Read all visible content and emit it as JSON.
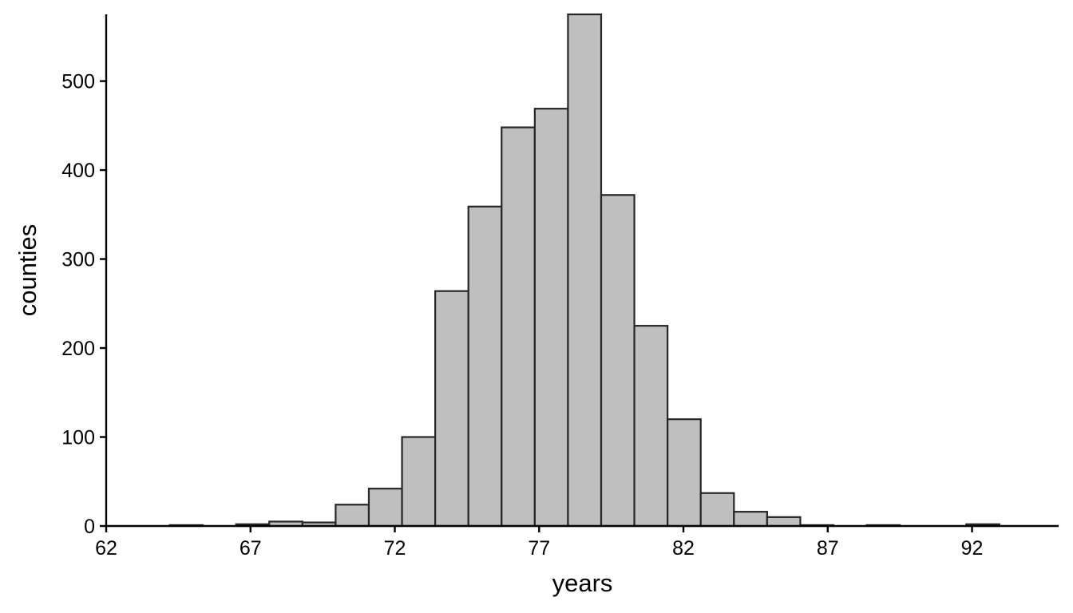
{
  "chart_data": {
    "type": "bar",
    "title": "",
    "xlabel": "years",
    "ylabel": "counties",
    "xlim": [
      62,
      95
    ],
    "ylim": [
      0,
      575
    ],
    "xticks": [
      62,
      67,
      72,
      77,
      82,
      87,
      92
    ],
    "yticks": [
      0,
      100,
      200,
      300,
      400,
      500
    ],
    "bin_width": 1.15,
    "bins": [
      {
        "x0": 64.2,
        "value": 1
      },
      {
        "x0": 66.5,
        "value": 2
      },
      {
        "x0": 67.65,
        "value": 5
      },
      {
        "x0": 68.8,
        "value": 4
      },
      {
        "x0": 69.95,
        "value": 24
      },
      {
        "x0": 71.1,
        "value": 42
      },
      {
        "x0": 72.25,
        "value": 100
      },
      {
        "x0": 73.4,
        "value": 264
      },
      {
        "x0": 74.55,
        "value": 359
      },
      {
        "x0": 75.7,
        "value": 448
      },
      {
        "x0": 76.85,
        "value": 469
      },
      {
        "x0": 78.0,
        "value": 575
      },
      {
        "x0": 79.15,
        "value": 372
      },
      {
        "x0": 80.3,
        "value": 225
      },
      {
        "x0": 81.45,
        "value": 120
      },
      {
        "x0": 82.6,
        "value": 37
      },
      {
        "x0": 83.75,
        "value": 16
      },
      {
        "x0": 84.9,
        "value": 10
      },
      {
        "x0": 86.05,
        "value": 1
      },
      {
        "x0": 88.35,
        "value": 1
      },
      {
        "x0": 91.8,
        "value": 2
      }
    ],
    "grid": false,
    "colors": {
      "bar_fill": "#bfbfbf",
      "bar_stroke": "#262626"
    }
  }
}
